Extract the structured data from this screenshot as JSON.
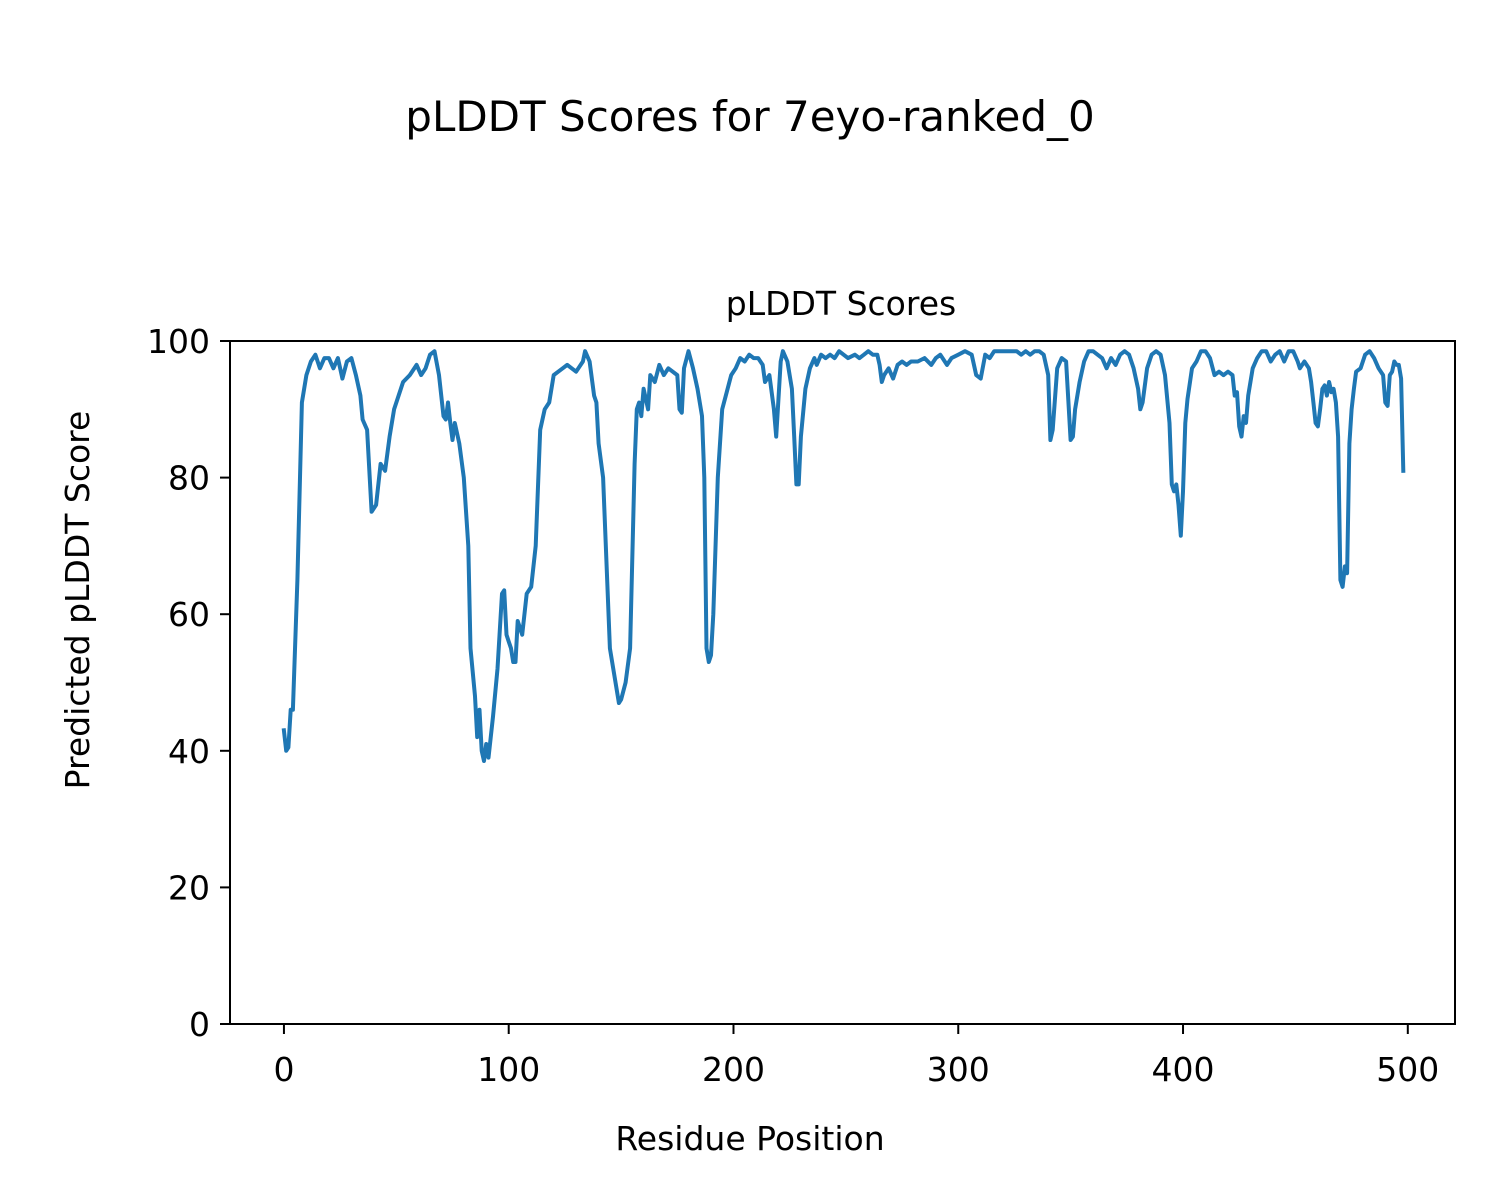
{
  "figure": {
    "suptitle": "pLDDT Scores for 7eyo-ranked_0"
  },
  "chart_data": {
    "type": "line",
    "title": "pLDDT Scores",
    "xlabel": "Residue Position",
    "ylabel": "Predicted pLDDT Score",
    "xlim": [
      -24,
      521
    ],
    "ylim": [
      0,
      100
    ],
    "xticks": [
      "0",
      "100",
      "200",
      "300",
      "400",
      "500"
    ],
    "yticks": [
      "0",
      "20",
      "40",
      "60",
      "80",
      "100"
    ],
    "grid": false,
    "series": [
      {
        "color": "#1f77b4",
        "points": [
          [
            0,
            43
          ],
          [
            1,
            40
          ],
          [
            2,
            40.5
          ],
          [
            3,
            46
          ],
          [
            4,
            46
          ],
          [
            6,
            65
          ],
          [
            8,
            91
          ],
          [
            10,
            95
          ],
          [
            12,
            97
          ],
          [
            14,
            98
          ],
          [
            16,
            96
          ],
          [
            18,
            97.5
          ],
          [
            20,
            97.5
          ],
          [
            22,
            96
          ],
          [
            24,
            97.5
          ],
          [
            26,
            94.5
          ],
          [
            28,
            97
          ],
          [
            30,
            97.5
          ],
          [
            32,
            95
          ],
          [
            34,
            92
          ],
          [
            35,
            88.5
          ],
          [
            37,
            87
          ],
          [
            39,
            75
          ],
          [
            41,
            76
          ],
          [
            43,
            82
          ],
          [
            45,
            81
          ],
          [
            47,
            86
          ],
          [
            49,
            90
          ],
          [
            51,
            92
          ],
          [
            53,
            94
          ],
          [
            56,
            95
          ],
          [
            59,
            96.5
          ],
          [
            61,
            95
          ],
          [
            63,
            96
          ],
          [
            65,
            98
          ],
          [
            67,
            98.5
          ],
          [
            69,
            95
          ],
          [
            71,
            89
          ],
          [
            72,
            88.5
          ],
          [
            73,
            91
          ],
          [
            74,
            88
          ],
          [
            75,
            85.5
          ],
          [
            76,
            88
          ],
          [
            78,
            85
          ],
          [
            80,
            80
          ],
          [
            82,
            70
          ],
          [
            83,
            55
          ],
          [
            85,
            48
          ],
          [
            86,
            42
          ],
          [
            87,
            46
          ],
          [
            88,
            40
          ],
          [
            89,
            38.5
          ],
          [
            90,
            41
          ],
          [
            91,
            39
          ],
          [
            93,
            45
          ],
          [
            95,
            52
          ],
          [
            97,
            63
          ],
          [
            98,
            63.5
          ],
          [
            99,
            57
          ],
          [
            100,
            56
          ],
          [
            101,
            55
          ],
          [
            102,
            53
          ],
          [
            103,
            53
          ],
          [
            104,
            59
          ],
          [
            106,
            57
          ],
          [
            108,
            63
          ],
          [
            110,
            64
          ],
          [
            112,
            70
          ],
          [
            114,
            87
          ],
          [
            116,
            90
          ],
          [
            118,
            91
          ],
          [
            120,
            95
          ],
          [
            122,
            95.5
          ],
          [
            124,
            96
          ],
          [
            126,
            96.5
          ],
          [
            128,
            96
          ],
          [
            130,
            95.5
          ],
          [
            133,
            97
          ],
          [
            134,
            98.5
          ],
          [
            136,
            97
          ],
          [
            138,
            92
          ],
          [
            139,
            91
          ],
          [
            140,
            85
          ],
          [
            142,
            80
          ],
          [
            145,
            55
          ],
          [
            147,
            51
          ],
          [
            149,
            47
          ],
          [
            150,
            47.5
          ],
          [
            152,
            50
          ],
          [
            154,
            55
          ],
          [
            156,
            82
          ],
          [
            157,
            90
          ],
          [
            158,
            91
          ],
          [
            159,
            89
          ],
          [
            160,
            93
          ],
          [
            162,
            90
          ],
          [
            163,
            95
          ],
          [
            165,
            94
          ],
          [
            167,
            96.5
          ],
          [
            169,
            95
          ],
          [
            171,
            96
          ],
          [
            175,
            95
          ],
          [
            176,
            90
          ],
          [
            177,
            89.5
          ],
          [
            178,
            96
          ],
          [
            180,
            98.5
          ],
          [
            182,
            96
          ],
          [
            184,
            93
          ],
          [
            186,
            89
          ],
          [
            187,
            80
          ],
          [
            188,
            55
          ],
          [
            189,
            53
          ],
          [
            190,
            54
          ],
          [
            191,
            60
          ],
          [
            193,
            80
          ],
          [
            195,
            90
          ],
          [
            197,
            92.5
          ],
          [
            199,
            95
          ],
          [
            201,
            96
          ],
          [
            203,
            97.5
          ],
          [
            205,
            97
          ],
          [
            207,
            98
          ],
          [
            209,
            97.5
          ],
          [
            211,
            97.5
          ],
          [
            213,
            96.5
          ],
          [
            214,
            94
          ],
          [
            216,
            95
          ],
          [
            218,
            90
          ],
          [
            219,
            86
          ],
          [
            221,
            97
          ],
          [
            222,
            98.5
          ],
          [
            224,
            97
          ],
          [
            226,
            93
          ],
          [
            227,
            86
          ],
          [
            228,
            79
          ],
          [
            229,
            79
          ],
          [
            230,
            86
          ],
          [
            232,
            93
          ],
          [
            234,
            96
          ],
          [
            236,
            97.5
          ],
          [
            237,
            96.5
          ],
          [
            239,
            98
          ],
          [
            241,
            97.5
          ],
          [
            243,
            98
          ],
          [
            245,
            97.5
          ],
          [
            247,
            98.5
          ],
          [
            249,
            98
          ],
          [
            251,
            97.5
          ],
          [
            254,
            98
          ],
          [
            256,
            97.5
          ],
          [
            258,
            98
          ],
          [
            260,
            98.5
          ],
          [
            262,
            98
          ],
          [
            264,
            98
          ],
          [
            265,
            96.5
          ],
          [
            266,
            94
          ],
          [
            267,
            95
          ],
          [
            269,
            96
          ],
          [
            271,
            94.5
          ],
          [
            273,
            96.5
          ],
          [
            275,
            97
          ],
          [
            277,
            96.5
          ],
          [
            279,
            97
          ],
          [
            282,
            97
          ],
          [
            285,
            97.5
          ],
          [
            288,
            96.5
          ],
          [
            290,
            97.5
          ],
          [
            292,
            98
          ],
          [
            295,
            96.5
          ],
          [
            297,
            97.5
          ],
          [
            300,
            98
          ],
          [
            303,
            98.5
          ],
          [
            306,
            98
          ],
          [
            308,
            95
          ],
          [
            310,
            94.5
          ],
          [
            312,
            98
          ],
          [
            314,
            97.5
          ],
          [
            316,
            98.5
          ],
          [
            318,
            98.5
          ],
          [
            320,
            98.5
          ],
          [
            322,
            98.5
          ],
          [
            324,
            98.5
          ],
          [
            326,
            98.5
          ],
          [
            328,
            98
          ],
          [
            330,
            98.5
          ],
          [
            332,
            98
          ],
          [
            334,
            98.5
          ],
          [
            336,
            98.5
          ],
          [
            338,
            98
          ],
          [
            340,
            95
          ],
          [
            341,
            85.5
          ],
          [
            342,
            87
          ],
          [
            344,
            96
          ],
          [
            346,
            97.5
          ],
          [
            348,
            97
          ],
          [
            350,
            85.5
          ],
          [
            351,
            86
          ],
          [
            352,
            90
          ],
          [
            354,
            94
          ],
          [
            356,
            97
          ],
          [
            358,
            98.5
          ],
          [
            360,
            98.5
          ],
          [
            362,
            98
          ],
          [
            364,
            97.5
          ],
          [
            366,
            96
          ],
          [
            368,
            97.5
          ],
          [
            370,
            96.5
          ],
          [
            372,
            98
          ],
          [
            374,
            98.5
          ],
          [
            376,
            98
          ],
          [
            378,
            96
          ],
          [
            380,
            93
          ],
          [
            381,
            90
          ],
          [
            382,
            91
          ],
          [
            384,
            96
          ],
          [
            386,
            98
          ],
          [
            388,
            98.5
          ],
          [
            390,
            98
          ],
          [
            392,
            95
          ],
          [
            394,
            88
          ],
          [
            395,
            79
          ],
          [
            396,
            78
          ],
          [
            397,
            79
          ],
          [
            398,
            76
          ],
          [
            399,
            71.5
          ],
          [
            400,
            78
          ],
          [
            401,
            88
          ],
          [
            402,
            91.5
          ],
          [
            404,
            96
          ],
          [
            406,
            97
          ],
          [
            408,
            98.5
          ],
          [
            410,
            98.5
          ],
          [
            412,
            97.5
          ],
          [
            414,
            95
          ],
          [
            416,
            95.5
          ],
          [
            418,
            95
          ],
          [
            420,
            95.5
          ],
          [
            422,
            95
          ],
          [
            423,
            92
          ],
          [
            424,
            92.5
          ],
          [
            425,
            87.5
          ],
          [
            426,
            86
          ],
          [
            427,
            89
          ],
          [
            428,
            88
          ],
          [
            429,
            92
          ],
          [
            431,
            96
          ],
          [
            433,
            97.5
          ],
          [
            435,
            98.5
          ],
          [
            437,
            98.5
          ],
          [
            439,
            97
          ],
          [
            441,
            98
          ],
          [
            443,
            98.5
          ],
          [
            445,
            97
          ],
          [
            447,
            98.5
          ],
          [
            449,
            98.5
          ],
          [
            451,
            97
          ],
          [
            452,
            96
          ],
          [
            454,
            97
          ],
          [
            456,
            96
          ],
          [
            457,
            94
          ],
          [
            458,
            91
          ],
          [
            459,
            88
          ],
          [
            460,
            87.5
          ],
          [
            461,
            90
          ],
          [
            462,
            93
          ],
          [
            463,
            93.5
          ],
          [
            464,
            92
          ],
          [
            465,
            94
          ],
          [
            466,
            92.5
          ],
          [
            467,
            93
          ],
          [
            468,
            91
          ],
          [
            469,
            86
          ],
          [
            470,
            65
          ],
          [
            471,
            64
          ],
          [
            472,
            67
          ],
          [
            473,
            66
          ],
          [
            474,
            85
          ],
          [
            475,
            90
          ],
          [
            476,
            93
          ],
          [
            477,
            95.5
          ],
          [
            479,
            96
          ],
          [
            481,
            98
          ],
          [
            483,
            98.5
          ],
          [
            485,
            97.5
          ],
          [
            487,
            96
          ],
          [
            489,
            95
          ],
          [
            490,
            91
          ],
          [
            491,
            90.5
          ],
          [
            492,
            95
          ],
          [
            493,
            95.5
          ],
          [
            494,
            97
          ],
          [
            495,
            96.5
          ],
          [
            496,
            96.5
          ],
          [
            497,
            94.5
          ],
          [
            498,
            81
          ]
        ]
      }
    ]
  }
}
